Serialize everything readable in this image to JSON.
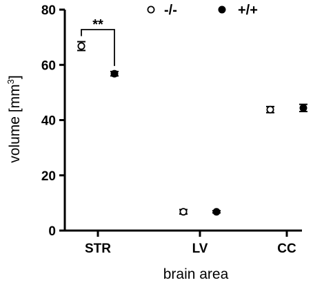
{
  "chart_data": {
    "type": "scatter",
    "categories": [
      "STR",
      "LV",
      "CC"
    ],
    "xlabel": "brain area",
    "ylabel": "volume [mm",
    "ylabel_sup": "3",
    "ylabel_close": "]",
    "ylim": [
      0,
      80
    ],
    "yticks": [
      "0",
      "20",
      "40",
      "60",
      "80"
    ],
    "series": [
      {
        "name": "-/-",
        "marker": "open-circle",
        "values": [
          66.8,
          6.8,
          43.8
        ],
        "err": [
          1.6,
          0.8,
          1.1
        ]
      },
      {
        "name": "+/+",
        "marker": "filled-circle",
        "values": [
          56.8,
          6.8,
          44.4
        ],
        "err": [
          0.8,
          0.4,
          1.3
        ]
      }
    ],
    "annotations": [
      {
        "text": "**",
        "category": "STR",
        "between": [
          "-/-",
          "+/+"
        ]
      }
    ],
    "legend": "top",
    "grid": false,
    "colors": {
      "marker": "#000000",
      "open_fill": "#ffffff"
    }
  }
}
